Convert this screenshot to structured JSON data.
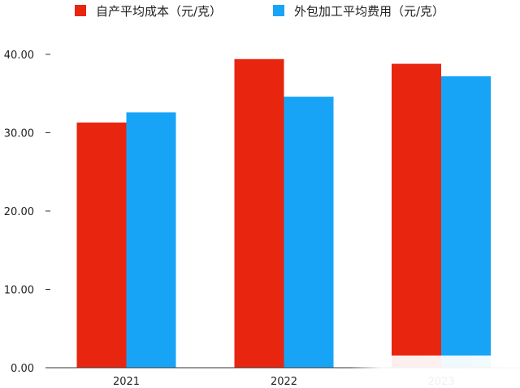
{
  "chart_data": {
    "type": "bar",
    "categories": [
      "2021",
      "2022",
      "2023"
    ],
    "series": [
      {
        "name": "自产平均成本（元/克）",
        "color": "#e8250f",
        "values": [
          31.3,
          39.4,
          38.8
        ]
      },
      {
        "name": "外包加工平均费用（元/克）",
        "color": "#17a4f6",
        "values": [
          32.6,
          34.6,
          37.2
        ]
      }
    ],
    "yticks": [
      "0.00",
      "10.00",
      "20.00",
      "30.00",
      "40.00"
    ],
    "ylim": [
      0,
      40
    ],
    "grid": false,
    "legend": "top"
  }
}
